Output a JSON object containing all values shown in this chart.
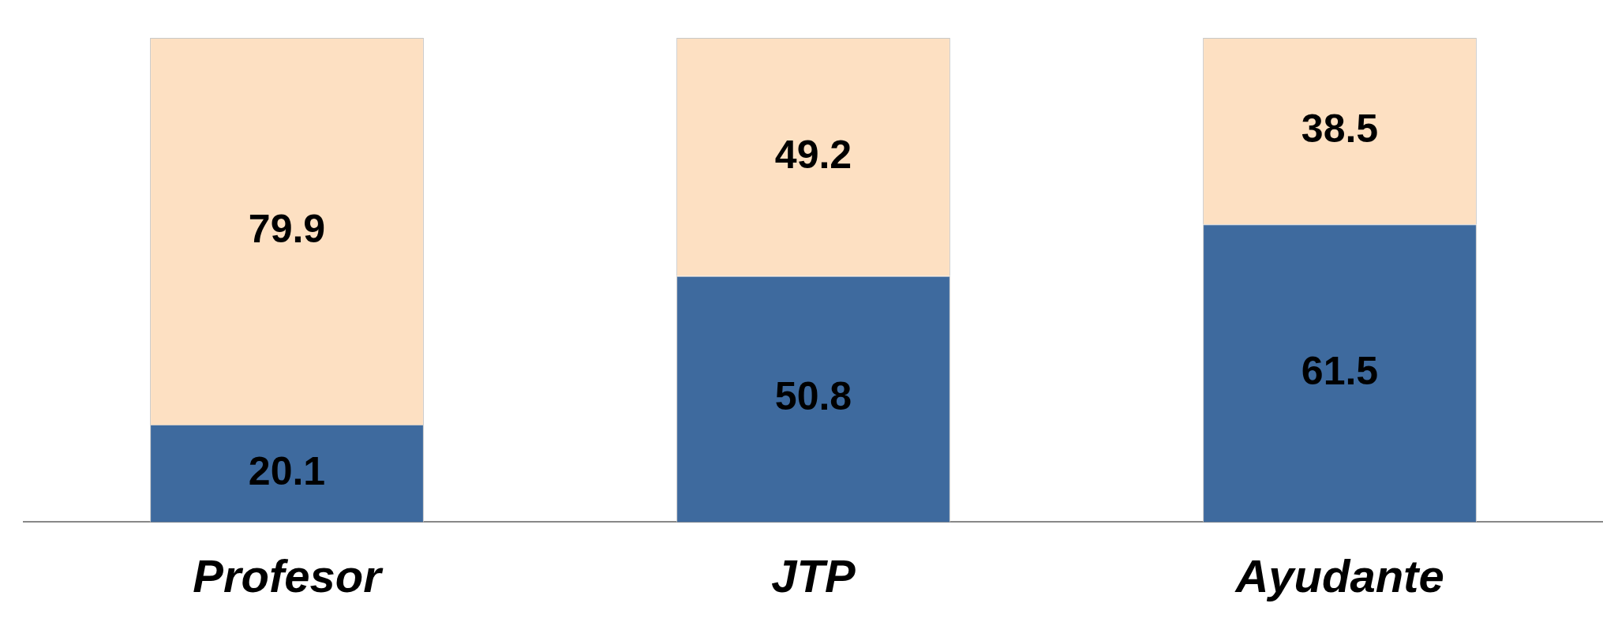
{
  "chart_data": {
    "type": "bar",
    "stacked": true,
    "categories": [
      "Profesor",
      "JTP",
      "Ayudante"
    ],
    "series": [
      {
        "color": "#3e6a9e",
        "values": [
          20.1,
          50.8,
          61.5
        ]
      },
      {
        "color": "#fde0c2",
        "values": [
          79.9,
          49.2,
          38.5
        ]
      }
    ],
    "ylim": [
      0,
      100
    ],
    "tick_labels": "x",
    "data_labels": true
  }
}
